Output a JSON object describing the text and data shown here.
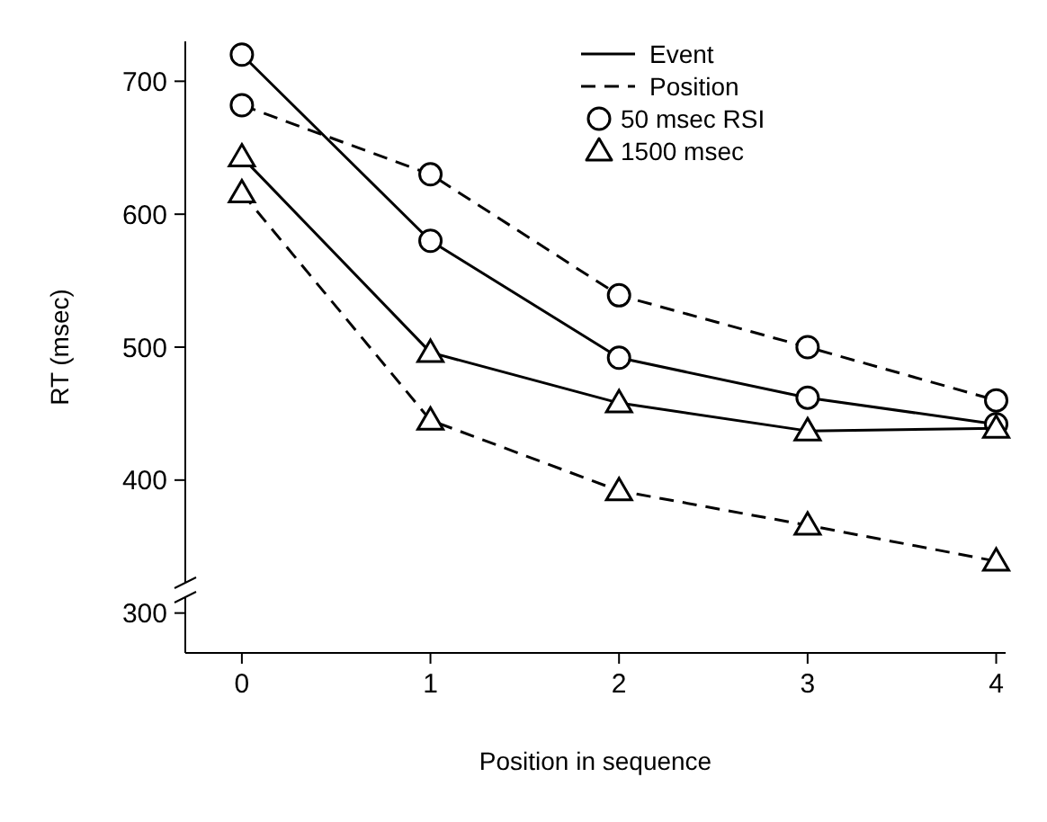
{
  "chart_data": {
    "type": "line",
    "xlabel": "Position in sequence",
    "ylabel": "RT (msec)",
    "x": [
      0,
      1,
      2,
      3,
      4
    ],
    "xlim": [
      -0.3,
      4.05
    ],
    "xticks": [
      0,
      1,
      2,
      3,
      4
    ],
    "ylim": [
      270,
      730
    ],
    "yticks": [
      300,
      400,
      500,
      600,
      700
    ],
    "grid": false,
    "annotations": [
      "Event",
      "Position",
      "50 msec RSI",
      "1500 msec"
    ],
    "series": [
      {
        "color": "#000000",
        "line_style": "solid",
        "marker": "circle",
        "values": [
          720,
          580,
          492,
          462,
          442
        ]
      },
      {
        "color": "#000000",
        "line_style": "solid",
        "marker": "triangle",
        "values": [
          643,
          496,
          458,
          437,
          439
        ]
      },
      {
        "color": "#000000",
        "line_style": "dashed",
        "marker": "circle",
        "values": [
          682,
          630,
          539,
          500,
          460
        ]
      },
      {
        "color": "#000000",
        "line_style": "dashed",
        "marker": "triangle",
        "values": [
          616,
          445,
          392,
          366,
          339
        ]
      }
    ]
  }
}
